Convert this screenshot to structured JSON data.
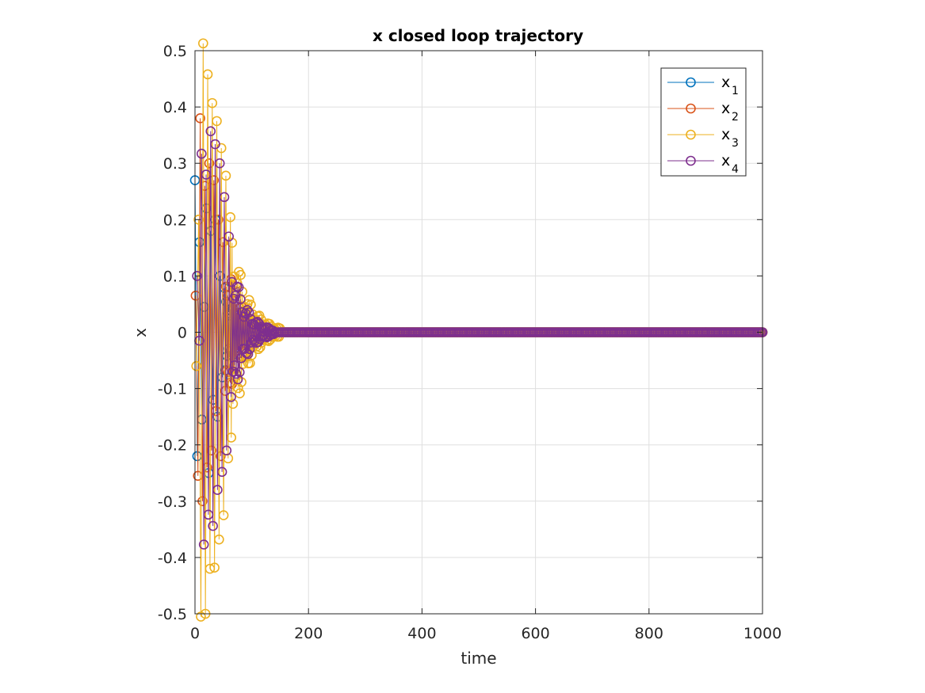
{
  "chart_data": {
    "type": "line",
    "title": "x closed loop trajectory",
    "xlabel": "time",
    "ylabel": "x",
    "xlim": [
      0,
      1000
    ],
    "ylim": [
      -0.5,
      0.5
    ],
    "xticks": [
      "0",
      "200",
      "400",
      "600",
      "800",
      "1000"
    ],
    "yticks": [
      "-0.5",
      "-0.4",
      "-0.3",
      "-0.2",
      "-0.1",
      "0",
      "0.1",
      "0.2",
      "0.3",
      "0.4",
      "0.5"
    ],
    "xtick_values": [
      0,
      200,
      400,
      600,
      800,
      1000
    ],
    "ytick_values": [
      -0.5,
      -0.4,
      -0.3,
      -0.2,
      -0.1,
      0,
      0.1,
      0.2,
      0.3,
      0.4,
      0.5
    ],
    "grid": true,
    "legend_position": "top-right",
    "marker": "circle",
    "series": [
      {
        "name": "x",
        "subscript": "1",
        "color": "#0072BD",
        "samples": [
          0.27,
          -0.22,
          0.16,
          -0.155,
          0.045,
          0.22,
          -0.25,
          0.18,
          -0.12,
          0.2,
          -0.15,
          0.1,
          -0.08
        ],
        "decay": 0.042,
        "tail_from": 140,
        "x_end": 1000
      },
      {
        "name": "x",
        "subscript": "2",
        "color": "#D95319",
        "samples": [
          0.065,
          -0.255,
          0.38,
          -0.3,
          0.26,
          -0.24,
          0.3,
          -0.21,
          0.27,
          -0.14,
          0.2,
          -0.22,
          0.16
        ],
        "decay": 0.042,
        "tail_from": 140,
        "x_end": 1000
      },
      {
        "name": "x",
        "subscript": "3",
        "color": "#EDB120",
        "samples": [
          -0.06,
          0.2,
          -0.505,
          0.513,
          -0.5,
          0.458,
          -0.42,
          0.407,
          -0.418,
          0.375,
          -0.368,
          0.327,
          -0.325,
          0.278,
          -0.224
        ],
        "decay": 0.038,
        "tail_from": 150,
        "x_end": 1000
      },
      {
        "name": "x",
        "subscript": "4",
        "color": "#7E2F8E",
        "samples": [
          0.1,
          -0.015,
          0.317,
          -0.377,
          0.28,
          -0.324,
          0.357,
          -0.344,
          0.334,
          -0.28,
          0.3,
          -0.248,
          0.24,
          -0.21,
          0.17
        ],
        "decay": 0.044,
        "tail_from": 140,
        "x_end": 1000
      }
    ]
  }
}
